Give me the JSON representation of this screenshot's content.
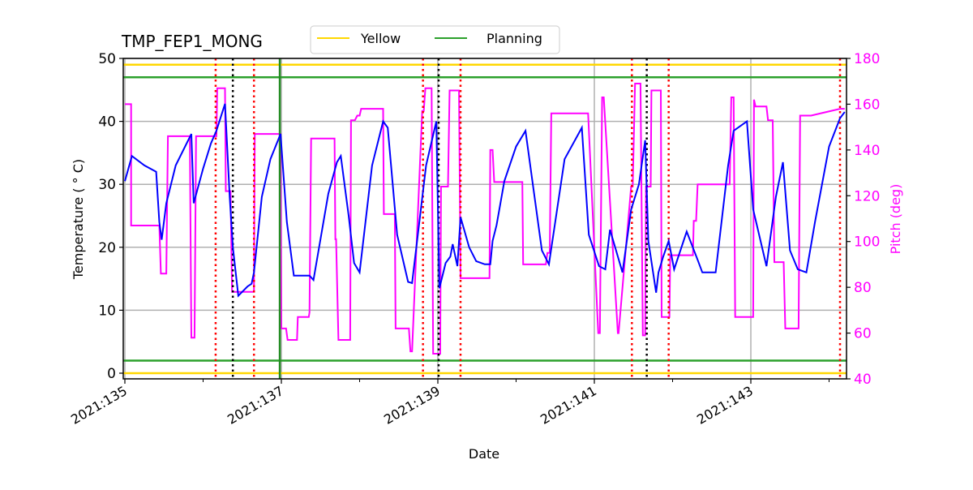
{
  "chart_data": {
    "type": "line",
    "title": "TMP_FEP1_MONG",
    "xlabel": "Date",
    "ylabel": "Temperature ($^\\circ$C)",
    "ylabel_display": "Temperature ( ° C)",
    "ylabel_right": "Pitch (deg)",
    "ylim": [
      -1,
      50
    ],
    "ylim_right": [
      40,
      180
    ],
    "xlim": [
      135,
      144.2
    ],
    "grid": true,
    "legend_position": "top-center",
    "legend": [
      {
        "label": "Yellow",
        "color": "#ffd700"
      },
      {
        "label": "Planning",
        "color": "#2ca02c"
      }
    ],
    "x_ticks": [
      {
        "value": 135,
        "label": "2021:135"
      },
      {
        "value": 137,
        "label": "2021:137"
      },
      {
        "value": 139,
        "label": "2021:139"
      },
      {
        "value": 141,
        "label": "2021:141"
      },
      {
        "value": 143,
        "label": "2021:143"
      }
    ],
    "x_minor_ticks": [
      136,
      138,
      140,
      142,
      144
    ],
    "y_ticks": [
      0,
      10,
      20,
      30,
      40,
      50
    ],
    "y_ticks_right": [
      40,
      60,
      80,
      100,
      120,
      140,
      160,
      180
    ],
    "limit_lines": [
      {
        "name": "Yellow high",
        "value": 49,
        "color": "#ffd700"
      },
      {
        "name": "Planning high",
        "value": 47,
        "color": "#2ca02c"
      },
      {
        "name": "Planning low",
        "value": 2,
        "color": "#2ca02c"
      },
      {
        "name": "Yellow low",
        "value": 0,
        "color": "#ffd700"
      }
    ],
    "vertical_lines": [
      {
        "x": 136.16,
        "color": "#ff0000",
        "style": "dotted"
      },
      {
        "x": 136.38,
        "color": "#000000",
        "style": "dotted"
      },
      {
        "x": 136.65,
        "color": "#ff0000",
        "style": "dotted"
      },
      {
        "x": 136.98,
        "color": "#228b22",
        "style": "solid"
      },
      {
        "x": 138.81,
        "color": "#ff0000",
        "style": "dotted"
      },
      {
        "x": 139.01,
        "color": "#000000",
        "style": "dotted"
      },
      {
        "x": 139.29,
        "color": "#ff0000",
        "style": "dotted"
      },
      {
        "x": 141.48,
        "color": "#ff0000",
        "style": "dotted"
      },
      {
        "x": 141.67,
        "color": "#000000",
        "style": "dotted"
      },
      {
        "x": 141.95,
        "color": "#ff0000",
        "style": "dotted"
      },
      {
        "x": 144.14,
        "color": "#ff0000",
        "style": "dotted"
      }
    ],
    "series": [
      {
        "name": "TMP_FEP1_MONG",
        "axis": "left",
        "color": "#0000ff",
        "x": [
          135.0,
          135.09,
          135.25,
          135.4,
          135.44,
          135.47,
          135.53,
          135.65,
          135.85,
          135.88,
          136.0,
          136.1,
          136.17,
          136.28,
          136.34,
          136.38,
          136.45,
          136.57,
          136.62,
          136.65,
          136.75,
          136.86,
          136.99,
          137.07,
          137.16,
          137.36,
          137.41,
          137.6,
          137.71,
          137.76,
          137.86,
          137.93,
          138.0,
          138.16,
          138.3,
          138.36,
          138.48,
          138.62,
          138.67,
          138.85,
          138.98,
          139.02,
          139.1,
          139.16,
          139.19,
          139.25,
          139.29,
          139.4,
          139.49,
          139.6,
          139.67,
          139.7,
          139.75,
          139.85,
          140.0,
          140.12,
          140.33,
          140.42,
          140.62,
          140.84,
          140.93,
          141.06,
          141.14,
          141.2,
          141.36,
          141.47,
          141.57,
          141.65,
          141.69,
          141.79,
          141.82,
          141.88,
          141.95,
          142.02,
          142.18,
          142.32,
          142.38,
          142.55,
          142.71,
          142.78,
          142.95,
          143.03,
          143.2,
          143.32,
          143.41,
          143.5,
          143.6,
          143.71,
          143.82,
          144.0,
          144.14,
          144.2
        ],
        "values": [
          30.5,
          34.5,
          33.0,
          32.0,
          24.0,
          21.2,
          27.0,
          33.0,
          38.0,
          27.0,
          32.5,
          36.5,
          38.5,
          42.8,
          28.0,
          20.0,
          12.3,
          13.8,
          14.2,
          16.0,
          28.0,
          34.0,
          38.0,
          24.0,
          15.5,
          15.5,
          14.8,
          28.5,
          33.5,
          34.5,
          25.0,
          17.5,
          16.0,
          33.0,
          40.0,
          39.0,
          22.0,
          14.5,
          14.3,
          33.0,
          40.0,
          13.5,
          17.5,
          18.5,
          20.5,
          17.0,
          24.8,
          20.0,
          17.8,
          17.3,
          17.3,
          21.0,
          23.5,
          30.5,
          36.0,
          38.5,
          19.5,
          17.3,
          34.0,
          39.0,
          22.0,
          17.0,
          16.5,
          22.8,
          16.0,
          26.0,
          30.0,
          37.0,
          21.0,
          12.8,
          16.0,
          18.5,
          21.0,
          16.5,
          22.5,
          18.0,
          16.0,
          16.0,
          33.0,
          38.5,
          40.0,
          26.0,
          17.0,
          28.0,
          33.5,
          19.5,
          16.5,
          16.0,
          24.0,
          36.0,
          40.5,
          41.5
        ]
      },
      {
        "name": "Pitch",
        "axis": "right",
        "color": "#ff00ff",
        "x": [
          135.0,
          135.08,
          135.08,
          135.44,
          135.46,
          135.53,
          135.55,
          135.83,
          135.85,
          135.89,
          135.91,
          136.17,
          136.18,
          136.28,
          136.29,
          136.35,
          136.37,
          136.65,
          136.66,
          136.99,
          137.0,
          137.06,
          137.08,
          137.2,
          137.21,
          137.35,
          137.36,
          137.38,
          137.4,
          137.68,
          137.69,
          137.7,
          137.73,
          137.88,
          137.89,
          137.94,
          137.97,
          138.0,
          138.02,
          138.1,
          138.11,
          138.3,
          138.31,
          138.45,
          138.46,
          138.63,
          138.65,
          138.67,
          138.8,
          138.82,
          138.84,
          138.92,
          138.94,
          139.03,
          139.04,
          139.13,
          139.15,
          139.27,
          139.29,
          139.66,
          139.67,
          139.7,
          139.72,
          140.08,
          140.09,
          140.38,
          140.4,
          140.43,
          140.45,
          140.9,
          140.92,
          140.92,
          141.05,
          141.07,
          141.1,
          141.12,
          141.3,
          141.31,
          141.47,
          141.49,
          141.52,
          141.59,
          141.62,
          141.65,
          141.66,
          141.72,
          141.73,
          141.85,
          141.86,
          141.96,
          141.97,
          142.26,
          142.27,
          142.3,
          142.32,
          142.73,
          142.75,
          142.78,
          142.8,
          143.03,
          143.04,
          143.06,
          143.2,
          143.22,
          143.28,
          143.3,
          143.42,
          143.44,
          143.61,
          143.63,
          143.74,
          143.77,
          144.14,
          144.2
        ],
        "values": [
          160,
          160,
          107,
          107,
          86,
          86,
          146,
          146,
          58,
          58,
          146,
          146,
          167,
          167,
          122,
          122,
          78,
          78,
          147,
          147,
          62,
          62,
          57,
          57,
          67,
          67,
          69,
          145,
          145,
          145,
          101,
          101,
          57,
          57,
          153,
          153,
          155,
          155,
          158,
          158,
          158,
          158,
          112,
          112,
          62,
          62,
          52,
          52,
          157,
          157,
          167,
          167,
          51,
          51,
          124,
          124,
          166,
          166,
          84,
          84,
          140,
          140,
          126,
          126,
          90,
          90,
          95,
          95,
          156,
          156,
          156,
          156,
          60,
          60,
          163,
          163,
          60,
          60,
          124,
          124,
          169,
          169,
          59,
          59,
          124,
          124,
          166,
          166,
          67,
          67,
          94,
          94,
          109,
          109,
          125,
          125,
          163,
          163,
          67,
          67,
          162,
          159,
          159,
          153,
          153,
          91,
          91,
          62,
          62,
          155,
          155,
          155,
          158,
          158
        ]
      }
    ]
  }
}
